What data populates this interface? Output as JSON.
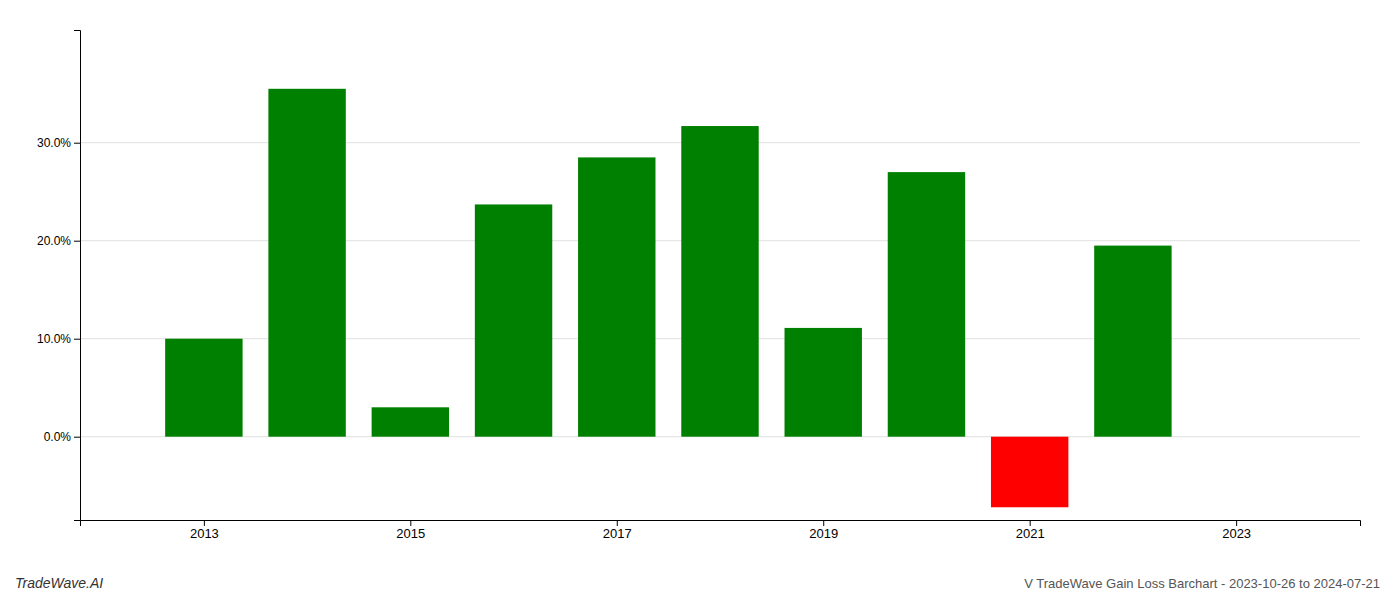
{
  "chart_data": {
    "type": "bar",
    "title": "V TradeWave Gain Loss Barchart - 2023-10-26 to 2024-07-21",
    "annotations": [
      "TradeWave.AI"
    ],
    "x": [
      2013,
      2014,
      2015,
      2016,
      2017,
      2018,
      2019,
      2020,
      2021,
      2022
    ],
    "values": [
      0.1,
      0.355,
      0.03,
      0.237,
      0.285,
      0.317,
      0.111,
      0.27,
      -0.072,
      0.195
    ],
    "colors": [
      "#008000",
      "#008000",
      "#008000",
      "#008000",
      "#008000",
      "#008000",
      "#008000",
      "#008000",
      "#ff0000",
      "#008000"
    ],
    "xlim": [
      2011.8,
      2024.2
    ],
    "xticks": [
      2013,
      2015,
      2017,
      2019,
      2021,
      2023
    ],
    "ylim": [
      -0.085,
      0.415
    ],
    "yticks": [
      {
        "value": 0.0,
        "label": "0.0%"
      },
      {
        "value": 0.1,
        "label": "10.0%"
      },
      {
        "value": 0.2,
        "label": "20.0%"
      },
      {
        "value": 0.3,
        "label": "30.0%"
      }
    ],
    "grid": true
  }
}
